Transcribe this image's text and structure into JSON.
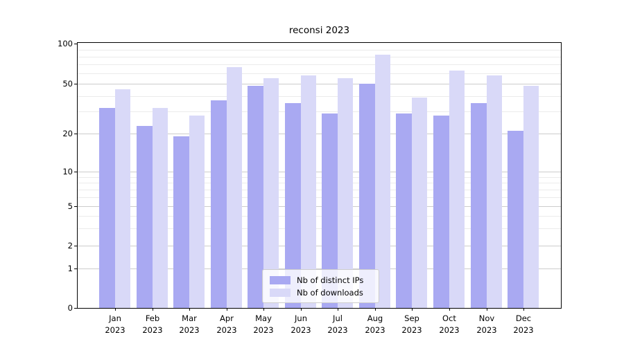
{
  "title": "reconsi 2023",
  "colors": {
    "ips_bar": "#a9a9f2",
    "downloads_bar": "#d9d9f8",
    "grid_major": "#cccccc",
    "grid_minor": "#ebebeb",
    "axis": "#000000"
  },
  "legend": {
    "items": [
      {
        "label": "Nb of distinct IPs",
        "series": "ips"
      },
      {
        "label": "Nb of downloads",
        "series": "downloads"
      }
    ]
  },
  "chart_data": {
    "type": "bar",
    "title": "reconsi 2023",
    "categories": [
      "Jan 2023",
      "Feb 2023",
      "Mar 2023",
      "Apr 2023",
      "May 2023",
      "Jun 2023",
      "Jul 2023",
      "Aug 2023",
      "Sep 2023",
      "Oct 2023",
      "Nov 2023",
      "Dec 2023"
    ],
    "series": [
      {
        "name": "Nb of distinct IPs",
        "key": "ips",
        "values": [
          32,
          23,
          19,
          37,
          48,
          35,
          29,
          50,
          29,
          28,
          35,
          21
        ]
      },
      {
        "name": "Nb of downloads",
        "key": "downloads",
        "values": [
          45,
          32,
          28,
          67,
          55,
          58,
          55,
          83,
          39,
          63,
          58,
          48
        ]
      }
    ],
    "yscale": "symlog",
    "ylim": [
      0,
      100
    ],
    "y_ticks": [
      100,
      50,
      20,
      10,
      5,
      2,
      1,
      0
    ],
    "grid": true,
    "legend_position": "lower center"
  }
}
